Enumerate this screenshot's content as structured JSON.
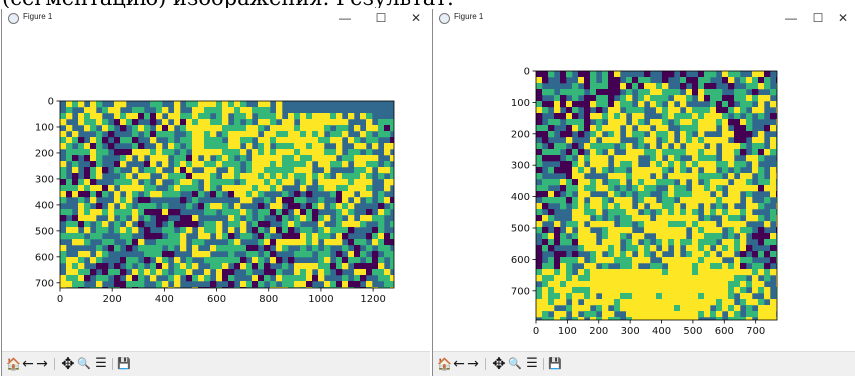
{
  "document": {
    "heading_fragment": "(сегментацию) изображения. Результат:"
  },
  "windows": [
    {
      "title": "Figure 1",
      "controls": {
        "minimize": "—",
        "maximize": "☐",
        "close": "✕"
      },
      "plot": {
        "x_ticks": [
          "0",
          "200",
          "400",
          "600",
          "800",
          "1000",
          "1200"
        ],
        "y_ticks": [
          "0",
          "100",
          "200",
          "300",
          "400",
          "500",
          "600",
          "700"
        ],
        "colormap": [
          "#440154",
          "#31688e",
          "#35b779",
          "#fde725"
        ]
      }
    },
    {
      "title": "Figure 1",
      "controls": {
        "minimize": "—",
        "maximize": "☐",
        "close": "✕"
      },
      "plot": {
        "x_ticks": [
          "0",
          "100",
          "200",
          "300",
          "400",
          "500",
          "600",
          "700"
        ],
        "y_ticks": [
          "0",
          "100",
          "200",
          "300",
          "400",
          "500",
          "600",
          "700"
        ],
        "colormap": [
          "#440154",
          "#31688e",
          "#35b779",
          "#fde725"
        ]
      }
    }
  ],
  "toolbar": {
    "home": "🏠",
    "back": "←",
    "forward": "→",
    "pan": "✥",
    "zoom": "🔍",
    "configure": "☰",
    "save": "💾"
  }
}
